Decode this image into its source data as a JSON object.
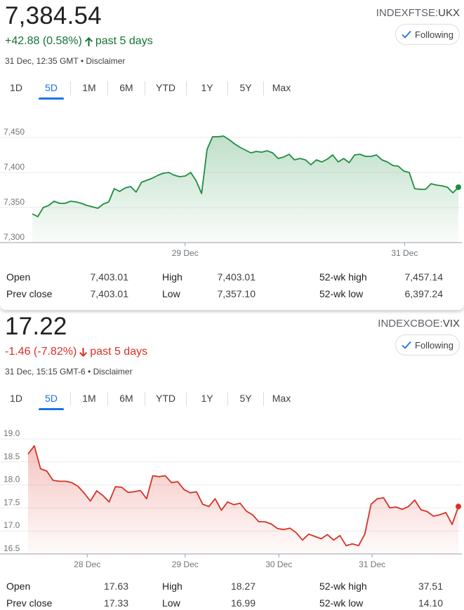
{
  "cards": [
    {
      "price": "7,384.54",
      "change": "+42.88 (0.58%)",
      "period": "past 5 days",
      "direction": "up",
      "meta": "31 Dec, 12:35 GMT • Disclaimer",
      "exchange": "INDEXFTSE:",
      "symbol": "UKX",
      "follow_label": "Following",
      "tabs": [
        "1D",
        "5D",
        "1M",
        "6M",
        "YTD",
        "1Y",
        "5Y",
        "Max"
      ],
      "active_tab": "5D",
      "stats": [
        [
          {
            "label": "Open",
            "value": "7,403.01"
          },
          {
            "label": "High",
            "value": "7,403.01"
          },
          {
            "label": "52-wk high",
            "value": "7,457.14"
          }
        ],
        [
          {
            "label": "Prev close",
            "value": "7,403.01"
          },
          {
            "label": "Low",
            "value": "7,357.10"
          },
          {
            "label": "52-wk low",
            "value": "6,397.24"
          }
        ]
      ],
      "chart_data": {
        "type": "area",
        "color": "#1e8e3e",
        "ylim": [
          7300,
          7460
        ],
        "yticks": [
          7300,
          7350,
          7400,
          7450
        ],
        "ytick_labels": [
          "7,300",
          "7,350",
          "7,400",
          "7,450"
        ],
        "xticks": [
          {
            "label": "29 Dec",
            "pos": 0.399
          },
          {
            "label": "31 Dec",
            "pos": 0.872
          }
        ],
        "baseline": 7300,
        "values": [
          7341,
          7337,
          7350,
          7353,
          7359,
          7356,
          7356,
          7359,
          7358,
          7356,
          7353,
          7351,
          7349,
          7355,
          7358,
          7377,
          7373,
          7378,
          7380,
          7372,
          7386,
          7389,
          7392,
          7396,
          7399,
          7400,
          7396,
          7394,
          7395,
          7400,
          7388,
          7370,
          7433,
          7451,
          7451,
          7452,
          7447,
          7441,
          7436,
          7432,
          7428,
          7430,
          7429,
          7431,
          7428,
          7420,
          7422,
          7426,
          7418,
          7420,
          7418,
          7411,
          7418,
          7415,
          7419,
          7425,
          7415,
          7420,
          7414,
          7425,
          7426,
          7423,
          7423,
          7425,
          7418,
          7415,
          7410,
          7409,
          7402,
          7400,
          7377,
          7376,
          7376,
          7384,
          7382,
          7381,
          7379,
          7371,
          7379
        ]
      }
    },
    {
      "price": "17.22",
      "change": "-1.46 (-7.82%)",
      "period": "past 5 days",
      "direction": "down",
      "meta": "31 Dec, 15:15 GMT-6 • Disclaimer",
      "exchange": "INDEXCBOE:",
      "symbol": "VIX",
      "follow_label": "Following",
      "tabs": [
        "1D",
        "5D",
        "1M",
        "6M",
        "YTD",
        "1Y",
        "5Y",
        "Max"
      ],
      "active_tab": "5D",
      "stats": [
        [
          {
            "label": "Open",
            "value": "17.63"
          },
          {
            "label": "High",
            "value": "18.27"
          },
          {
            "label": "52-wk high",
            "value": "37.51"
          }
        ],
        [
          {
            "label": "Prev close",
            "value": "17.33"
          },
          {
            "label": "Low",
            "value": "16.99"
          },
          {
            "label": "52-wk low",
            "value": "14.10"
          }
        ]
      ],
      "chart_data": {
        "type": "area",
        "color": "#d93025",
        "ylim": [
          16.5,
          19.0
        ],
        "yticks": [
          16.5,
          17.0,
          17.5,
          18.0,
          18.5,
          19.0
        ],
        "ytick_labels": [
          "16.5",
          "17.0",
          "17.5",
          "18.0",
          "18.5",
          "19.0"
        ],
        "xticks": [
          {
            "label": "28 Dec",
            "pos": 0.188
          },
          {
            "label": "29 Dec",
            "pos": 0.399
          },
          {
            "label": "30 Dec",
            "pos": 0.601
          },
          {
            "label": "31 Dec",
            "pos": 0.802
          }
        ],
        "baseline": 16.5,
        "values": [
          18.67,
          18.85,
          18.35,
          18.3,
          18.1,
          18.08,
          18.08,
          18.05,
          17.97,
          17.82,
          17.65,
          17.87,
          17.77,
          17.63,
          17.96,
          17.95,
          17.84,
          17.85,
          17.88,
          17.7,
          18.2,
          18.18,
          18.2,
          18.05,
          18.07,
          17.9,
          17.83,
          17.85,
          17.58,
          17.53,
          17.7,
          17.45,
          17.63,
          17.57,
          17.6,
          17.43,
          17.35,
          17.2,
          17.2,
          17.15,
          17.05,
          17.03,
          17.06,
          16.96,
          16.8,
          16.93,
          16.88,
          16.83,
          16.92,
          16.8,
          16.9,
          16.68,
          16.72,
          16.68,
          16.93,
          17.58,
          17.7,
          17.72,
          17.5,
          17.52,
          17.47,
          17.53,
          17.67,
          17.46,
          17.42,
          17.32,
          17.35,
          17.4,
          17.14,
          17.53
        ]
      }
    }
  ]
}
